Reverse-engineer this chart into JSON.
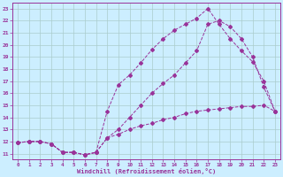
{
  "xlabel": "Windchill (Refroidissement éolien,°C)",
  "bg_color": "#cceeff",
  "line_color": "#993399",
  "grid_color": "#aacccc",
  "xmin": 0,
  "xmax": 23,
  "ymin": 11,
  "ymax": 23,
  "line1_x": [
    0,
    1,
    2,
    3,
    4,
    5,
    6,
    7,
    8,
    9,
    10,
    11,
    12,
    13,
    14,
    15,
    16,
    17,
    18,
    19,
    20,
    21,
    22,
    23
  ],
  "line1_y": [
    11.9,
    12.0,
    12.0,
    11.8,
    11.1,
    11.1,
    10.9,
    11.1,
    12.3,
    12.6,
    13.0,
    13.3,
    13.5,
    13.8,
    14.0,
    14.3,
    14.5,
    14.6,
    14.7,
    14.8,
    14.9,
    14.9,
    15.0,
    14.5
  ],
  "line2_x": [
    0,
    1,
    2,
    3,
    4,
    5,
    6,
    7,
    8,
    9,
    10,
    11,
    12,
    13,
    14,
    15,
    16,
    17,
    18,
    19,
    20,
    21,
    22,
    23
  ],
  "line2_y": [
    11.9,
    12.0,
    12.0,
    11.8,
    11.1,
    11.1,
    10.9,
    11.1,
    14.5,
    16.7,
    17.5,
    18.5,
    19.6,
    20.5,
    21.2,
    21.7,
    22.2,
    23.0,
    21.7,
    20.5,
    19.5,
    18.6,
    17.0,
    14.5
  ],
  "line3_x": [
    0,
    1,
    2,
    3,
    4,
    5,
    6,
    7,
    8,
    9,
    10,
    11,
    12,
    13,
    14,
    15,
    16,
    17,
    18,
    19,
    20,
    21,
    22,
    23
  ],
  "line3_y": [
    11.9,
    12.0,
    12.0,
    11.8,
    11.1,
    11.1,
    10.9,
    11.1,
    12.3,
    13.0,
    14.0,
    15.0,
    16.0,
    16.8,
    17.5,
    18.5,
    19.5,
    21.7,
    22.0,
    21.5,
    20.5,
    19.0,
    16.5,
    14.5
  ],
  "xticks": [
    0,
    1,
    2,
    3,
    4,
    5,
    6,
    7,
    8,
    9,
    10,
    11,
    12,
    13,
    14,
    15,
    16,
    17,
    18,
    19,
    20,
    21,
    22,
    23
  ],
  "yticks": [
    11,
    12,
    13,
    14,
    15,
    16,
    17,
    18,
    19,
    20,
    21,
    22,
    23
  ]
}
